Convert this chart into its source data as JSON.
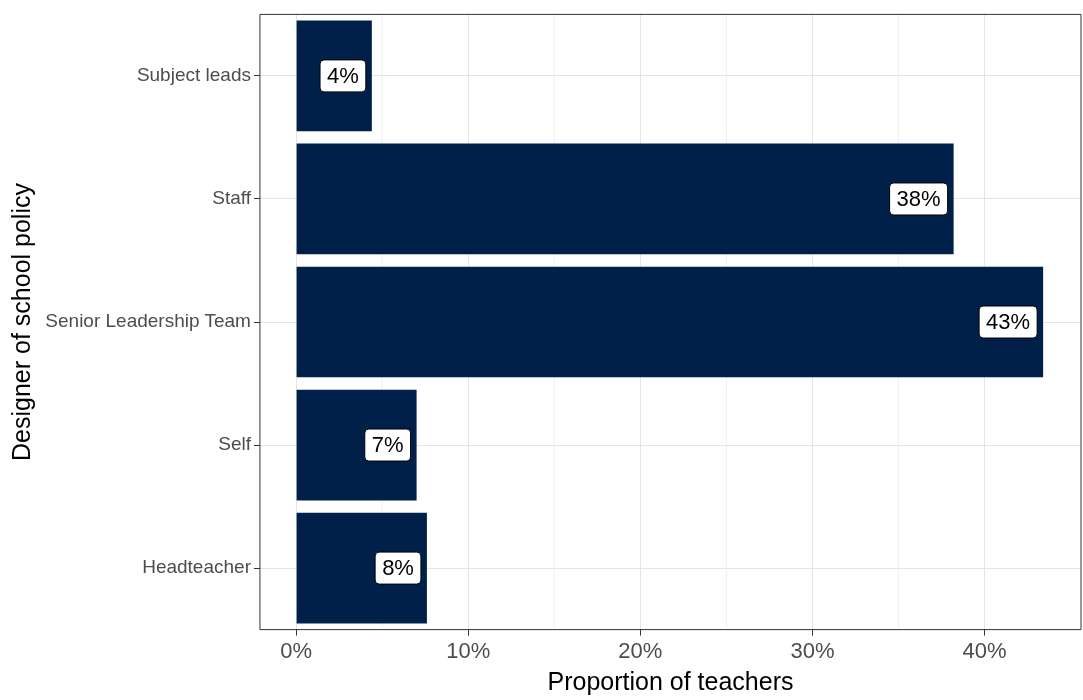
{
  "chart_data": {
    "type": "bar",
    "orientation": "horizontal",
    "xlabel": "Proportion of teachers",
    "ylabel": "Designer of school policy",
    "categories": [
      "Subject leads",
      "Staff",
      "Senior Leadership Team",
      "Self",
      "Headteacher"
    ],
    "values": [
      4.4,
      38.2,
      43.4,
      7.0,
      7.6
    ],
    "value_labels": [
      "4%",
      "38%",
      "43%",
      "7%",
      "8%"
    ],
    "color": "#00204a",
    "xlim": [
      -2.1,
      45.6
    ],
    "xticks": [
      {
        "value": 0,
        "label": "0%"
      },
      {
        "value": 10,
        "label": "10%"
      },
      {
        "value": 20,
        "label": "20%"
      },
      {
        "value": 30,
        "label": "30%"
      },
      {
        "value": 40,
        "label": "40%"
      }
    ],
    "grid": true,
    "legend": false
  }
}
